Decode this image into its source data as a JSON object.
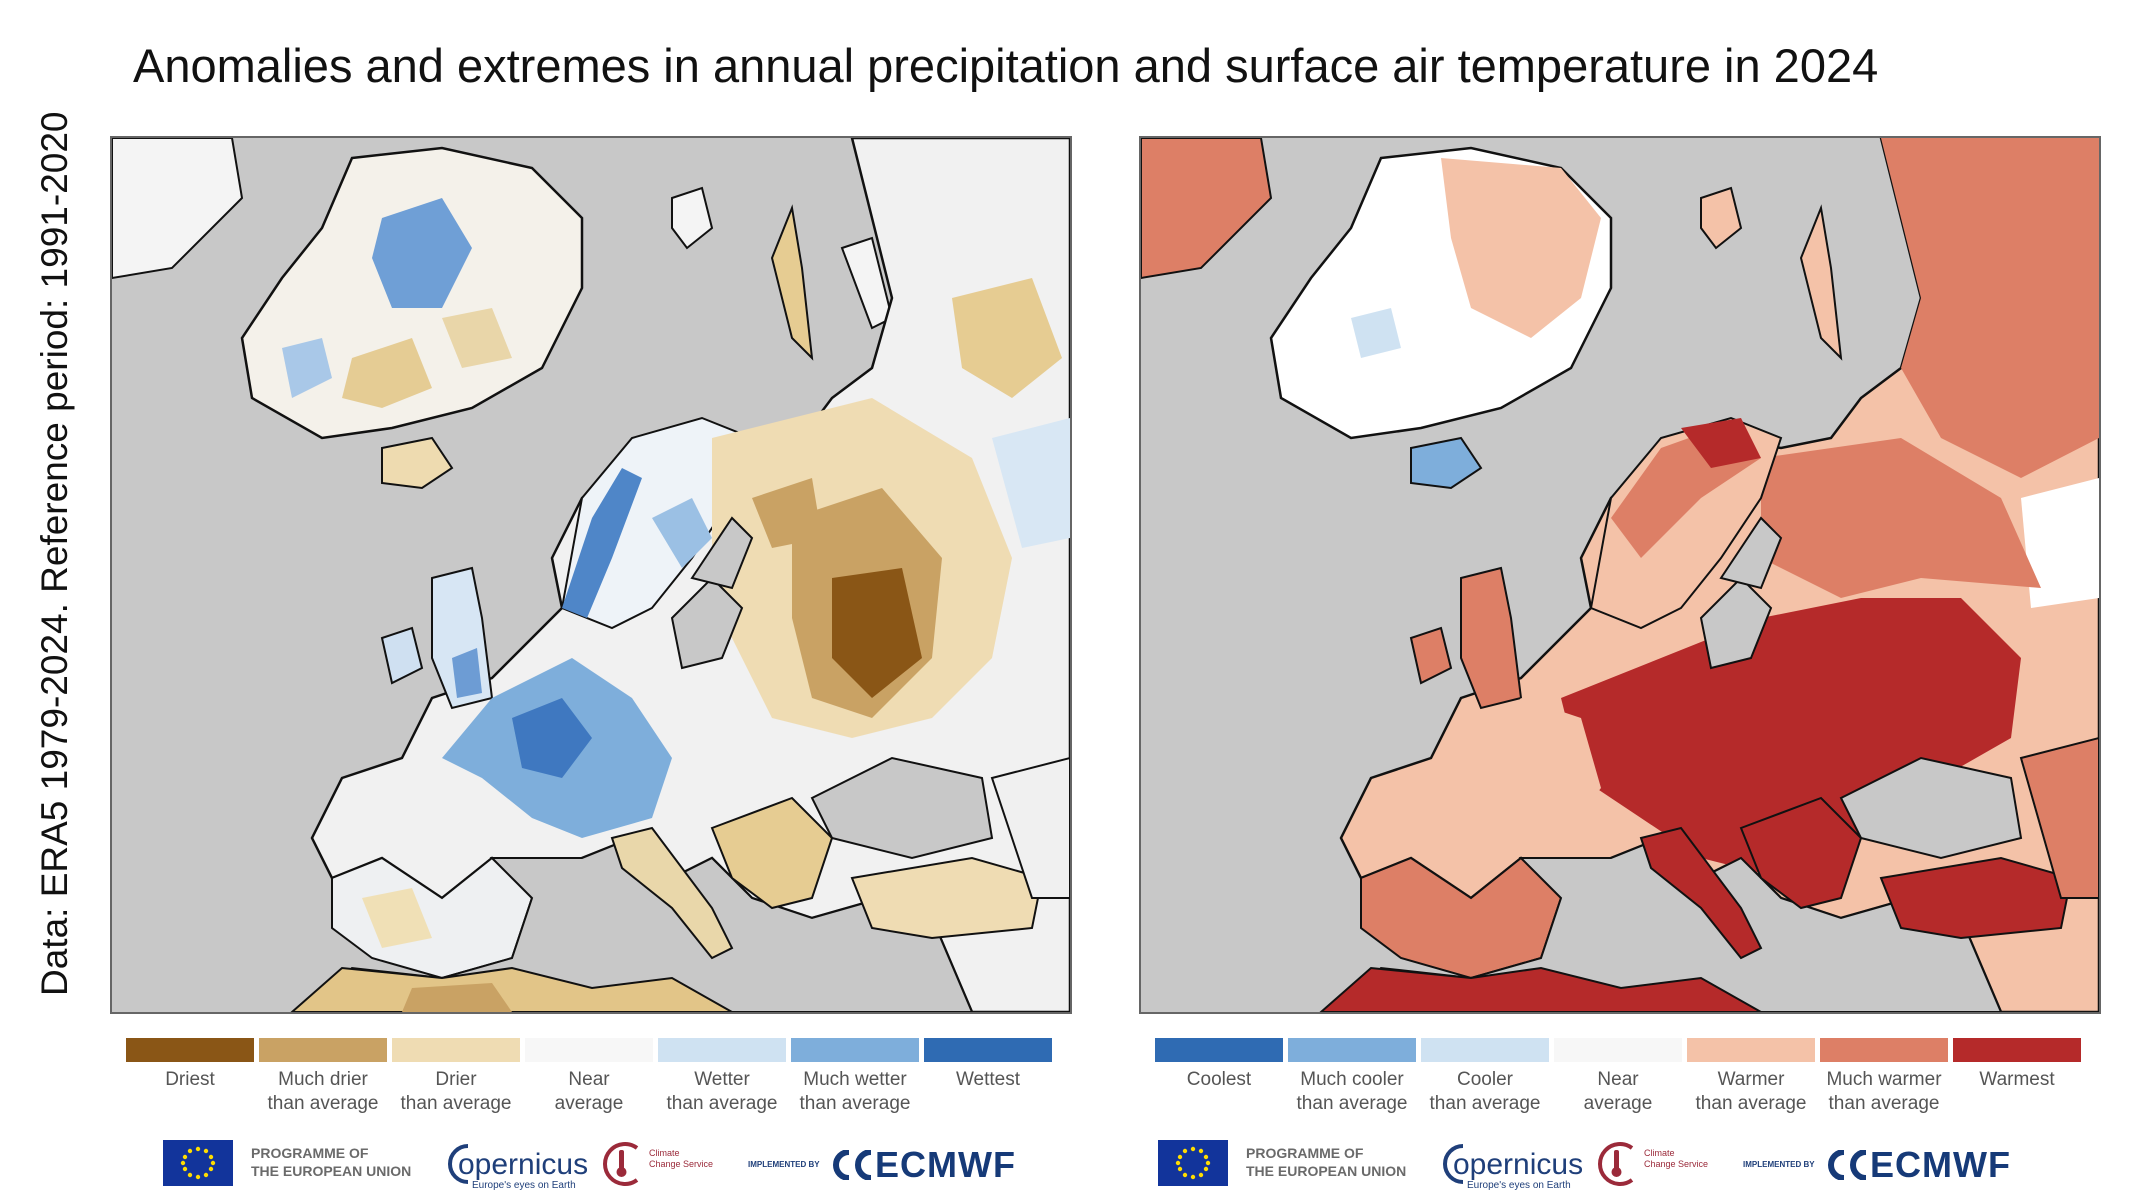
{
  "title": "Anomalies and extremes in annual precipitation and surface air temperature in 2024",
  "side_label": "Data: ERA5 1979-2024. Reference period: 1991-2020",
  "precipitation_legend": [
    {
      "line1": "Driest",
      "line2": "",
      "color": "#8a5616"
    },
    {
      "line1": "Much drier",
      "line2": "than average",
      "color": "#c9a264"
    },
    {
      "line1": "Drier",
      "line2": "than average",
      "color": "#efdcb3"
    },
    {
      "line1": "Near",
      "line2": "average",
      "color": "#f7f7f7"
    },
    {
      "line1": "Wetter",
      "line2": "than average",
      "color": "#cfe2f2"
    },
    {
      "line1": "Much wetter",
      "line2": "than average",
      "color": "#7eaedb"
    },
    {
      "line1": "Wettest",
      "line2": "",
      "color": "#2f6bb3"
    }
  ],
  "temperature_legend": [
    {
      "line1": "Coolest",
      "line2": "",
      "color": "#2f6bb3"
    },
    {
      "line1": "Much cooler",
      "line2": "than average",
      "color": "#7eaedb"
    },
    {
      "line1": "Cooler",
      "line2": "than average",
      "color": "#cfe2f2"
    },
    {
      "line1": "Near",
      "line2": "average",
      "color": "#f7f7f7"
    },
    {
      "line1": "Warmer",
      "line2": "than average",
      "color": "#f4c2a8"
    },
    {
      "line1": "Much warmer",
      "line2": "than average",
      "color": "#dd7f66"
    },
    {
      "line1": "Warmest",
      "line2": "",
      "color": "#b52a2a"
    }
  ],
  "logos": {
    "eu_line1": "PROGRAMME OF",
    "eu_line2": "THE EUROPEAN UNION",
    "copernicus": "opernicus",
    "copernicus_sub": "Europe's eyes on Earth",
    "c3s_line1": "Climate",
    "c3s_line2": "Change Service",
    "implemented_by": "IMPLEMENTED BY",
    "ecmwf": "ECMWF"
  },
  "colors": {
    "sea": "#c8c8c8",
    "coast": "#111111"
  }
}
